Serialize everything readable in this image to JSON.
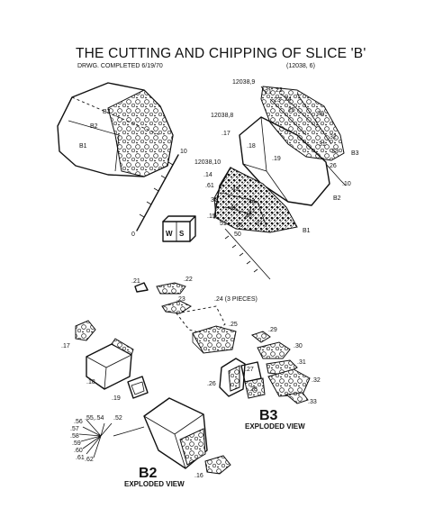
{
  "title": "THE CUTTING AND CHIPPING OF SLICE 'B'",
  "subtitle": "DRWG. COMPLETED 6/19/70",
  "sample_id": "(12038, 6)",
  "piece_labels": {
    "b3": "B3",
    "b1": "B1",
    "b2": "B2",
    "b3_right": "B3",
    "b2_right": "B2",
    "b1_right": "B1"
  },
  "sample_labels": {
    "s9": "12038,9",
    "s8": "12038,8",
    "s10": "12038,10"
  },
  "numbers": {
    "n14": ".14",
    "n15": ".15",
    "n17a": ".17",
    "n17b": ".17",
    "n18": ".18",
    "n19": ".19",
    "n21": ".21",
    "n22": ".22",
    "n23": ".23",
    "n24": ".24 (3 PIECES)",
    "n25": ".25",
    "n26": ".26",
    "n27": ".27",
    "n28": ".28",
    "n29": ".29",
    "n30": ".30",
    "n31": ".31",
    "n32": ".32",
    "n33": ".33",
    "n16": ".16",
    "n_right_10": ".10",
    "n_right_26": ".26",
    "r2_21": "21",
    "r2_22": "22",
    "r2_23": "23",
    "r2_24": "24",
    "r2_25": "25",
    "r2_30": "30",
    "r2_31": "31",
    "r2_32": "32",
    "r2_33": "33",
    "r1_43": "43",
    "r1_44": "44",
    "r1_42": "42",
    "r1_41": "41",
    "r1_36": "36",
    "r1_50": "50",
    "r1_61": ".61",
    "r1_51": "51",
    "r1_37": "37",
    "r1_46": "46",
    "r1_40": "40",
    "r1_35": ".35",
    "r1_38": "38",
    "r1_39": "39"
  },
  "chip_numbers": [
    ".55,.54",
    ".52",
    ".56",
    ".57",
    ".58",
    ".59",
    ".60",
    ".61",
    ".62"
  ],
  "orientation_cube": {
    "left": "W",
    "right": "S"
  },
  "scale": {
    "zero": "0",
    "ten": "10"
  },
  "captions": {
    "b3_big": "B3",
    "b3_caption": "EXPLODED VIEW",
    "b2_big": "B2",
    "b2_caption": "EXPLODED VIEW"
  }
}
